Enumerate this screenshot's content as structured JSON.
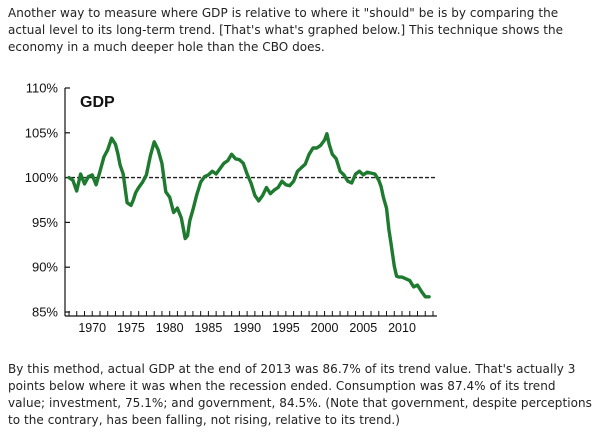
{
  "article": {
    "intro": "Another way to measure where GDP is relative to where it \"should\" be is by comparing the actual level to its long-term trend. [That's what's graphed below.] This technique shows the economy in a much deeper hole than the CBO does.",
    "conclusion": "By this method, actual GDP at the end of 2013 was 86.7% of its trend value. That's actually 3 points below where it was when the recession ended. Consumption was 87.4% of its trend value; investment, 75.1%; and government, 84.5%. (Note that government, despite perceptions to the contrary, has been falling, not rising, relative to its trend.)"
  },
  "chart_data": {
    "type": "line",
    "title": "GDP",
    "xlabel": "",
    "ylabel": "",
    "xlim": [
      1967,
      2014
    ],
    "ylim": [
      85,
      110
    ],
    "y_ticks": [
      110,
      105,
      100,
      95,
      90,
      85
    ],
    "y_tick_labels": [
      "110%",
      "105%",
      "100%",
      "95%",
      "90%",
      "85%"
    ],
    "x_ticks": [
      1970,
      1975,
      1980,
      1985,
      1990,
      1995,
      2000,
      2005,
      2010
    ],
    "x_tick_labels": [
      "1970",
      "1975",
      "1980",
      "1985",
      "1990",
      "1995",
      "2000",
      "2005",
      "2010"
    ],
    "reference_line": {
      "y": 100,
      "style": "dashed"
    },
    "line_color": "#1e7a2e",
    "series": [
      {
        "x": [
          1967,
          1967.5,
          1968,
          1968.5,
          1969,
          1969.5,
          1970,
          1970.5,
          1971,
          1971.5,
          1972,
          1972.5,
          1973,
          1973.3,
          1973.6,
          1974,
          1974.5,
          1975,
          1975.3,
          1975.6,
          1976,
          1976.5,
          1977,
          1977.5,
          1978,
          1978.5,
          1979,
          1979.5,
          1980,
          1980.5,
          1981,
          1981.5,
          1982,
          1982.3,
          1982.6,
          1983,
          1983.5,
          1984,
          1984.5,
          1985,
          1985.5,
          1986,
          1986.5,
          1987,
          1987.5,
          1988,
          1988.5,
          1989,
          1989.5,
          1990,
          1990.5,
          1991,
          1991.5,
          1992,
          1992.5,
          1993,
          1993.5,
          1994,
          1994.5,
          1995,
          1995.5,
          1996,
          1996.5,
          1997,
          1997.5,
          1998,
          1998.5,
          1999,
          1999.5,
          2000,
          2000.3,
          2000.6,
          2001,
          2001.5,
          2002,
          2002.5,
          2003,
          2003.5,
          2004,
          2004.5,
          2005,
          2005.5,
          2006,
          2006.5,
          2007,
          2007.3,
          2007.6,
          2008,
          2008.3,
          2008.6,
          2009,
          2009.3,
          2009.6,
          2010,
          2010.5,
          2011,
          2011.5,
          2012,
          2012.5,
          2013,
          2013.5
        ],
        "y": [
          100,
          99.7,
          98.5,
          100.4,
          99.3,
          100.1,
          100.3,
          99.2,
          100.7,
          102.3,
          103.1,
          104.4,
          103.7,
          102.7,
          101.4,
          100.4,
          97.2,
          96.9,
          97.5,
          98.3,
          98.9,
          99.5,
          100.3,
          102.4,
          104.0,
          103.1,
          101.6,
          98.4,
          97.8,
          96.1,
          96.6,
          95.5,
          93.2,
          93.5,
          95.2,
          96.4,
          98.1,
          99.5,
          100.1,
          100.3,
          100.7,
          100.4,
          101.0,
          101.6,
          101.9,
          102.6,
          102.1,
          102.0,
          101.6,
          100.4,
          99.4,
          98.0,
          97.4,
          98.0,
          98.9,
          98.2,
          98.6,
          98.9,
          99.6,
          99.2,
          99.1,
          99.6,
          100.7,
          101.1,
          101.5,
          102.6,
          103.3,
          103.3,
          103.6,
          104.2,
          104.9,
          103.7,
          102.6,
          102.1,
          100.7,
          100.3,
          99.6,
          99.4,
          100.4,
          100.7,
          100.3,
          100.6,
          100.5,
          100.4,
          99.7,
          99.0,
          97.8,
          96.6,
          94.2,
          92.5,
          90.1,
          89.0,
          88.9,
          88.9,
          88.7,
          88.5,
          87.8,
          88.0,
          87.3,
          86.7,
          86.7
        ]
      }
    ]
  }
}
